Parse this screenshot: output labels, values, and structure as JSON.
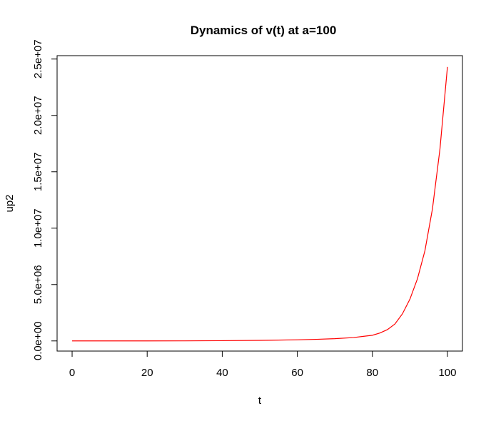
{
  "chart_data": {
    "type": "line",
    "title": "Dynamics of v(t) at a=100",
    "xlabel": "t",
    "ylabel": "up2",
    "xlim": [
      -4,
      104
    ],
    "ylim": [
      -900000,
      25300000
    ],
    "xticks": [
      0,
      20,
      40,
      60,
      80,
      100
    ],
    "xtick_labels": [
      "0",
      "20",
      "40",
      "60",
      "80",
      "100"
    ],
    "yticks": [
      0,
      5000000,
      10000000,
      15000000,
      20000000,
      25000000
    ],
    "ytick_labels": [
      "0.0e+00",
      "5.0e+06",
      "1.0e+07",
      "1.5e+07",
      "2.0e+07",
      "2.5e+07"
    ],
    "grid": false,
    "series": [
      {
        "color": "#ff0000",
        "x": [
          0,
          10,
          20,
          30,
          40,
          50,
          60,
          65,
          70,
          75,
          80,
          82,
          84,
          86,
          88,
          90,
          92,
          94,
          96,
          98,
          100
        ],
        "y": [
          0,
          100,
          1000,
          5000,
          20000,
          50000,
          100000,
          140000,
          200000,
          300000,
          500000,
          700000,
          1000000,
          1500000,
          2400000,
          3700000,
          5500000,
          8000000,
          11700000,
          17000000,
          24300000
        ]
      }
    ]
  }
}
